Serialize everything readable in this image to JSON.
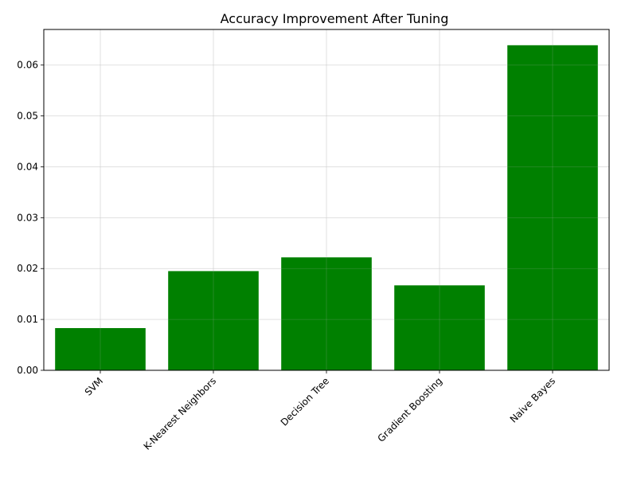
{
  "chart_data": {
    "type": "bar",
    "title": "Accuracy Improvement After Tuning",
    "xlabel": "",
    "ylabel": "",
    "categories": [
      "SVM",
      "K-Nearest Neighbors",
      "Decision Tree",
      "Gradient Boosting",
      "Naive Bayes"
    ],
    "values": [
      0.0083,
      0.0195,
      0.0222,
      0.0167,
      0.0639
    ],
    "ylim": [
      0,
      0.067
    ],
    "yticks": [
      "0.00",
      "0.01",
      "0.02",
      "0.03",
      "0.04",
      "0.05",
      "0.06"
    ],
    "grid": true,
    "bar_color": "#008000",
    "xtick_rotation_deg": 45
  }
}
